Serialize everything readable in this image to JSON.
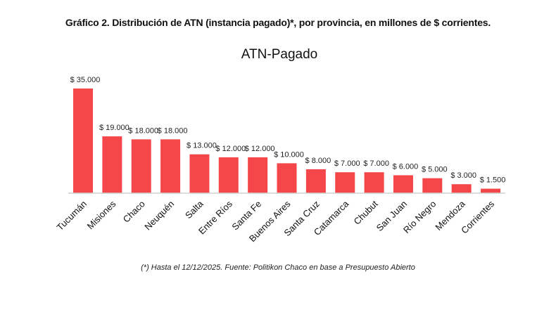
{
  "heading": "Gráfico 2. Distribución de ATN (instancia pagado)*, por provincia, en millones de $ corrientes.",
  "footnote": "(*) Hasta el 12/12/2025. Fuente: Politikon Chaco en base a Presupuesto Abierto",
  "chart_data": {
    "type": "bar",
    "title": "ATN-Pagado",
    "xlabel": "",
    "ylabel": "",
    "categories": [
      "Tucumán",
      "Misiones",
      "Chaco",
      "Neuquén",
      "Salta",
      "Entre Ríos",
      "Santa Fe",
      "Buenos Aires",
      "Santa Cruz",
      "Catamarca",
      "Chubut",
      "San Juan",
      "Río Negro",
      "Mendoza",
      "Corrientes"
    ],
    "values": [
      35000,
      19000,
      18000,
      18000,
      13000,
      12000,
      12000,
      10000,
      8000,
      7000,
      7000,
      6000,
      5000,
      3000,
      1500
    ],
    "data_labels": [
      "$ 35.000",
      "$ 19.000",
      "$ 18.000",
      "$ 18.000",
      "$ 13.000",
      "$ 12.000",
      "$ 12.000",
      "$ 10.000",
      "$ 8.000",
      "$ 7.000",
      "$ 7.000",
      "$ 6.000",
      "$ 5.000",
      "$ 3.000",
      "$ 1.500"
    ],
    "ylim": [
      0,
      35000
    ],
    "grid": false,
    "legend": "none",
    "bar_color": "#f5474a",
    "axis_color": "#d0d0d0"
  }
}
